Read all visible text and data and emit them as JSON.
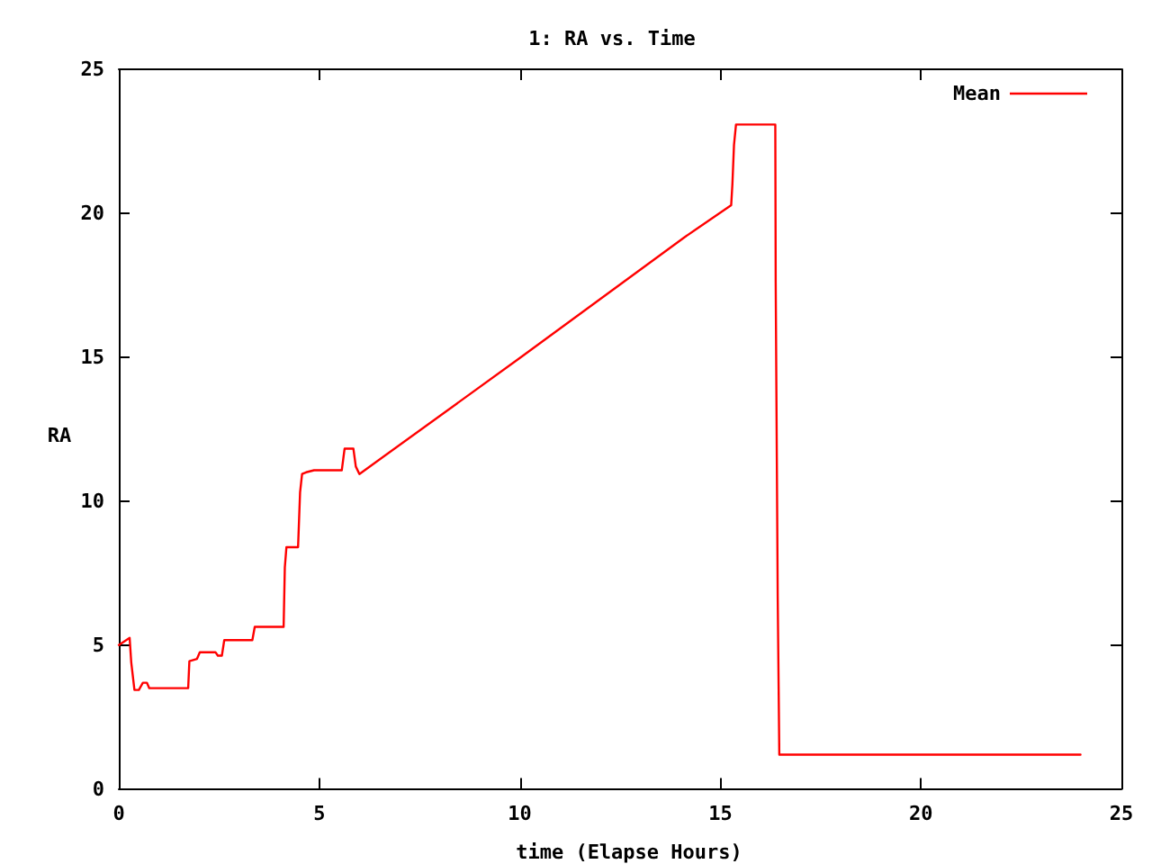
{
  "chart_data": {
    "type": "line",
    "title": "1: RA vs. Time",
    "xlabel": "time (Elapse Hours)",
    "ylabel": "RA",
    "series": [
      {
        "name": "Mean",
        "color": "#ff0000",
        "x": [
          0,
          0.27,
          0.31,
          0.39,
          0.5,
          0.6,
          0.7,
          0.76,
          1.73,
          1.76,
          1.95,
          2.02,
          2.41,
          2.47,
          2.57,
          2.63,
          3.33,
          3.39,
          4.11,
          4.14,
          4.18,
          4.47,
          4.52,
          4.57,
          4.67,
          4.87,
          5.56,
          5.63,
          5.85,
          5.91,
          6.0,
          10.0,
          14.11,
          15.27,
          15.3,
          15.34,
          15.39,
          16.37,
          16.38,
          16.43,
          16.47,
          23.98
        ],
        "values": [
          5.0,
          5.25,
          4.4,
          3.44,
          3.44,
          3.69,
          3.69,
          3.5,
          3.5,
          4.44,
          4.52,
          4.75,
          4.75,
          4.63,
          4.63,
          5.17,
          5.17,
          5.63,
          5.63,
          7.7,
          8.4,
          8.4,
          10.3,
          10.94,
          11.0,
          11.07,
          11.07,
          11.82,
          11.82,
          11.2,
          10.94,
          14.97,
          19.17,
          20.28,
          21.0,
          22.37,
          23.08,
          23.08,
          17.6,
          6.7,
          1.19,
          1.19
        ]
      }
    ],
    "xlim": [
      0,
      25
    ],
    "xticks": [
      0,
      5,
      10,
      15,
      20,
      25
    ],
    "ylim": [
      0,
      25
    ],
    "yticks": [
      0,
      5,
      10,
      15,
      20,
      25
    ],
    "grid": false,
    "legend": "top right",
    "marker": "none",
    "line_style": "solid"
  }
}
